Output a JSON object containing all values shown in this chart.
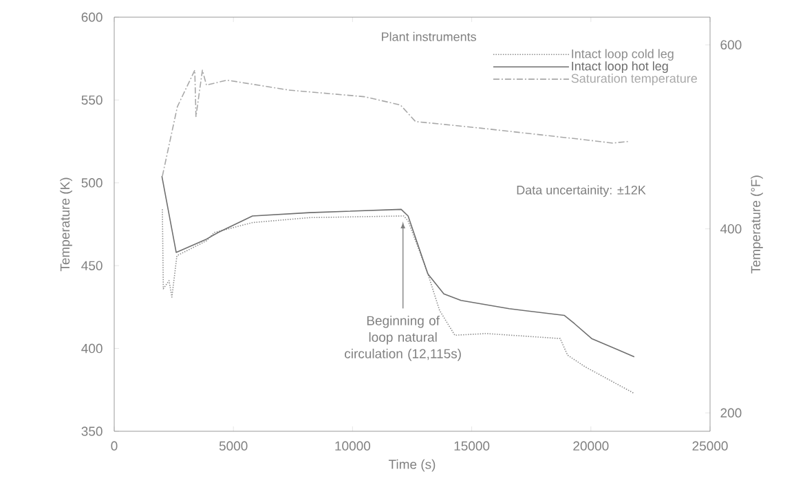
{
  "chart_data": {
    "type": "line",
    "xlabel": "Time (s)",
    "ylabel": "Temperature (K)",
    "y2label": "Temperature (°F)",
    "xlim": [
      0,
      25000
    ],
    "xticks": [
      0,
      5000,
      10000,
      15000,
      20000,
      25000
    ],
    "ylim": [
      350,
      600
    ],
    "yticks": [
      350,
      400,
      450,
      500,
      550,
      600
    ],
    "y2lim": [
      180,
      630
    ],
    "y2ticks": [
      200,
      400,
      600
    ],
    "legend": "top right",
    "legend_title": "Plant instruments",
    "grid": false,
    "marker": "none",
    "series": [
      {
        "name": "Intact loop cold leg",
        "color": "#8c8c8c",
        "line_style": "dotted",
        "x": [
          2020,
          2060,
          2300,
          2420,
          2630,
          3870,
          4200,
          5800,
          8200,
          12150,
          12330,
          13140,
          13650,
          14290,
          15620,
          18710,
          19020,
          19750,
          21800
        ],
        "values": [
          484,
          436,
          441,
          431,
          456,
          465,
          470,
          476,
          479,
          480,
          477,
          446,
          423,
          408,
          409,
          406,
          396,
          389,
          373
        ]
      },
      {
        "name": "Intact loop hot leg",
        "color": "#6e6e6e",
        "line_style": "solid",
        "x": [
          2000,
          2600,
          3870,
          4360,
          5800,
          8200,
          12040,
          12330,
          13160,
          13830,
          14550,
          16570,
          18880,
          19310,
          20030,
          21820
        ],
        "values": [
          504,
          458,
          466,
          470,
          480,
          482,
          484,
          480,
          445,
          433,
          429,
          424,
          420,
          415,
          406,
          395
        ]
      },
      {
        "name": "Saturation temperature",
        "color": "#a8a8a8",
        "line_style": "dashed",
        "x": [
          2020,
          2650,
          3380,
          3430,
          3700,
          3870,
          4730,
          7330,
          10500,
          12010,
          12640,
          15400,
          19750,
          20900,
          21600
        ],
        "values": [
          504,
          546,
          568,
          540,
          568,
          559,
          562,
          556,
          552,
          547,
          537,
          533,
          526,
          524,
          525
        ]
      }
    ],
    "annotations": [
      "Beginning of loop natural circulation (12,115s)",
      "Data uncertainity: ±12K"
    ]
  }
}
